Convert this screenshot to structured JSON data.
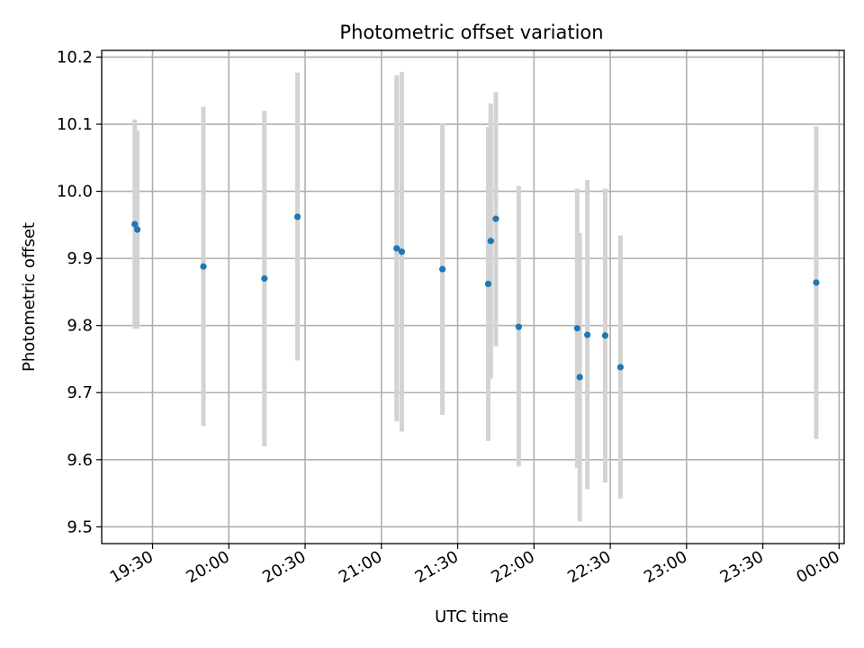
{
  "chart_data": {
    "type": "scatter",
    "title": "Photometric offset variation",
    "xlabel": "UTC time",
    "ylabel": "Photometric offset",
    "xlim": [
      "19:10",
      "00:02"
    ],
    "ylim": [
      9.475,
      10.21
    ],
    "xticks": [
      "19:30",
      "20:00",
      "20:30",
      "21:00",
      "21:30",
      "22:00",
      "22:30",
      "23:00",
      "23:30",
      "00:00"
    ],
    "yticks": [
      "9.5",
      "9.6",
      "9.7",
      "9.8",
      "9.9",
      "10.0",
      "10.1",
      "10.2"
    ],
    "grid": true,
    "marker_color": "#1f77b4",
    "errorbar_color": "#d3d3d3",
    "series": [
      {
        "points": [
          {
            "x": "19:23",
            "y": 9.951,
            "ylo": 9.795,
            "yhi": 10.107
          },
          {
            "x": "19:24",
            "y": 9.943,
            "ylo": 9.795,
            "yhi": 10.091
          },
          {
            "x": "19:50",
            "y": 9.888,
            "ylo": 9.65,
            "yhi": 10.126
          },
          {
            "x": "20:14",
            "y": 9.87,
            "ylo": 9.62,
            "yhi": 10.12
          },
          {
            "x": "20:27",
            "y": 9.962,
            "ylo": 9.748,
            "yhi": 10.177
          },
          {
            "x": "21:06",
            "y": 9.915,
            "ylo": 9.657,
            "yhi": 10.173
          },
          {
            "x": "21:08",
            "y": 9.91,
            "ylo": 9.642,
            "yhi": 10.178
          },
          {
            "x": "21:24",
            "y": 9.884,
            "ylo": 9.667,
            "yhi": 10.101
          },
          {
            "x": "21:42",
            "y": 9.862,
            "ylo": 9.628,
            "yhi": 10.096
          },
          {
            "x": "21:43",
            "y": 9.926,
            "ylo": 9.721,
            "yhi": 10.131
          },
          {
            "x": "21:45",
            "y": 9.959,
            "ylo": 9.769,
            "yhi": 10.148
          },
          {
            "x": "21:54",
            "y": 9.798,
            "ylo": 9.59,
            "yhi": 10.008
          },
          {
            "x": "22:17",
            "y": 9.796,
            "ylo": 9.588,
            "yhi": 10.004
          },
          {
            "x": "22:18",
            "y": 9.723,
            "ylo": 9.508,
            "yhi": 9.938
          },
          {
            "x": "22:21",
            "y": 9.786,
            "ylo": 9.556,
            "yhi": 10.017
          },
          {
            "x": "22:28",
            "y": 9.785,
            "ylo": 9.566,
            "yhi": 10.004
          },
          {
            "x": "22:34",
            "y": 9.738,
            "ylo": 9.542,
            "yhi": 9.934
          },
          {
            "x": "23:51",
            "y": 9.864,
            "ylo": 9.631,
            "yhi": 10.097
          }
        ]
      }
    ]
  }
}
